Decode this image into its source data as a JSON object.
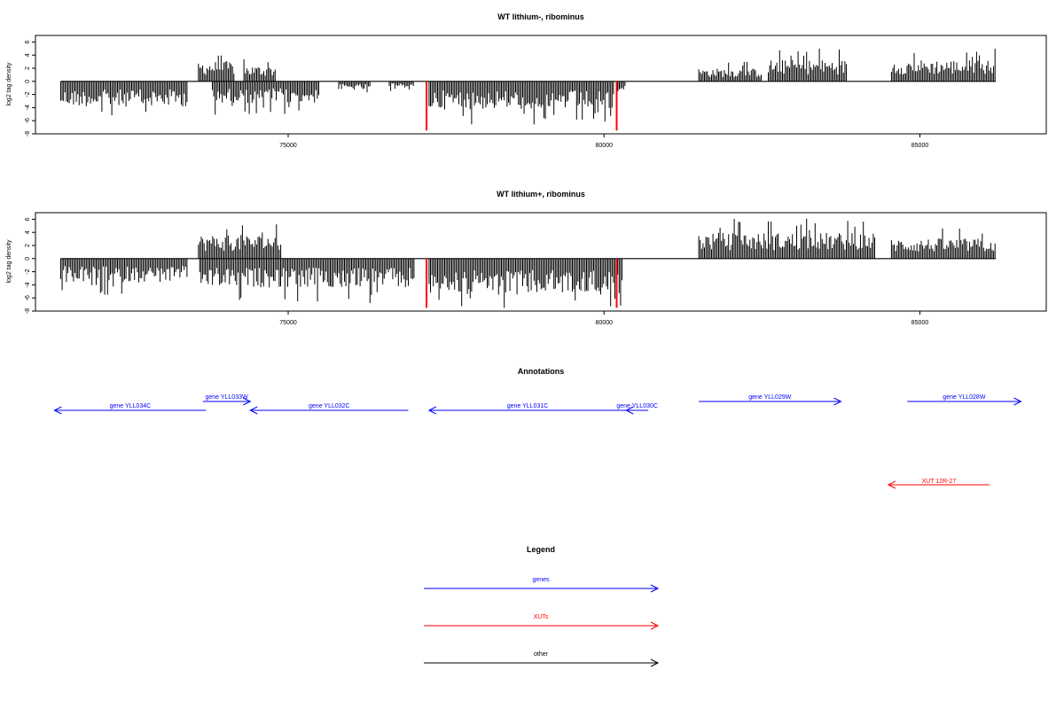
{
  "chart_data": [
    {
      "type": "bar",
      "title": "WT lithium-, ribominus",
      "ylabel": "log2 tag density",
      "xlim": [
        71000,
        87000
      ],
      "ylim": [
        -8,
        7
      ],
      "x_ticks": [
        75000,
        80000,
        85000
      ],
      "y_ticks": [
        -8,
        -6,
        -4,
        -2,
        0,
        2,
        4,
        6
      ],
      "series": [
        {
          "color": "#000000",
          "segments": [
            {
              "x_start": 71400,
              "x_end": 73400,
              "value": -3.5
            },
            {
              "x_start": 73580,
              "x_end": 74150,
              "value": 2.8
            },
            {
              "x_start": 74300,
              "x_end": 74800,
              "value": 2.2
            },
            {
              "x_start": 73800,
              "x_end": 75500,
              "value": -3.0
            },
            {
              "x_start": 75800,
              "x_end": 76300,
              "value": -1.2
            },
            {
              "x_start": 76600,
              "x_end": 77000,
              "value": -0.9
            },
            {
              "x_start": 77230,
              "x_end": 80150,
              "value": -3.9
            },
            {
              "x_start": 80220,
              "x_end": 80350,
              "value": -1.8
            },
            {
              "x_start": 81500,
              "x_end": 82500,
              "value": 1.8
            },
            {
              "x_start": 82600,
              "x_end": 83850,
              "value": 3.0
            },
            {
              "x_start": 84550,
              "x_end": 86200,
              "value": 3.0
            }
          ]
        },
        {
          "color": "#ff0000",
          "spikes": [
            {
              "x": 77190,
              "value": -7.5
            },
            {
              "x": 80200,
              "value": -7.5
            }
          ]
        }
      ]
    },
    {
      "type": "bar",
      "title": "WT lithium+, ribominus",
      "ylabel": "log2 tag density",
      "xlim": [
        71000,
        87000
      ],
      "ylim": [
        -8,
        7
      ],
      "x_ticks": [
        75000,
        80000,
        85000
      ],
      "y_ticks": [
        -8,
        -6,
        -4,
        -2,
        0,
        2,
        4,
        6
      ],
      "series": [
        {
          "color": "#000000",
          "segments": [
            {
              "x_start": 71400,
              "x_end": 73400,
              "value": -3.3
            },
            {
              "x_start": 73580,
              "x_end": 74900,
              "value": 3.3
            },
            {
              "x_start": 73600,
              "x_end": 77000,
              "value": -4.0
            },
            {
              "x_start": 77230,
              "x_end": 80300,
              "value": -5.0
            },
            {
              "x_start": 81500,
              "x_end": 84300,
              "value": 3.6
            },
            {
              "x_start": 84550,
              "x_end": 86200,
              "value": 2.8
            }
          ]
        },
        {
          "color": "#ff0000",
          "spikes": [
            {
              "x": 77190,
              "value": -7.5
            },
            {
              "x": 80200,
              "value": -7.5
            }
          ]
        }
      ]
    }
  ],
  "annotations": {
    "title": "Annotations",
    "items": [
      {
        "label": "gene YLL034C",
        "strand": "-",
        "start": 71300,
        "end": 73700,
        "color": "#0000ff",
        "row": 2
      },
      {
        "label": "gene YLL033W",
        "strand": "+",
        "start": 73650,
        "end": 74400,
        "color": "#0000ff",
        "row": 1
      },
      {
        "label": "gene YLL032C",
        "strand": "-",
        "start": 74400,
        "end": 76900,
        "color": "#0000ff",
        "row": 2
      },
      {
        "label": "gene YLL031C",
        "strand": "-",
        "start": 77230,
        "end": 80350,
        "color": "#0000ff",
        "row": 2
      },
      {
        "label": "gene YLL030C",
        "strand": "-",
        "start": 80350,
        "end": 80700,
        "color": "#0000ff",
        "row": 2
      },
      {
        "label": "gene YLL029W",
        "strand": "+",
        "start": 81500,
        "end": 83750,
        "color": "#0000ff",
        "row": 1
      },
      {
        "label": "gene YLL028W",
        "strand": "+",
        "start": 84800,
        "end": 86600,
        "color": "#0000ff",
        "row": 1
      },
      {
        "label": "XUT 12R-27",
        "strand": "-",
        "start": 84500,
        "end": 86100,
        "color": "#ff0000",
        "row": 3
      }
    ]
  },
  "legend": {
    "title": "Legend",
    "items": [
      {
        "label": "genes",
        "color": "#0000ff"
      },
      {
        "label": "XUTs",
        "color": "#ff0000"
      },
      {
        "label": "other",
        "color": "#000000"
      }
    ]
  }
}
